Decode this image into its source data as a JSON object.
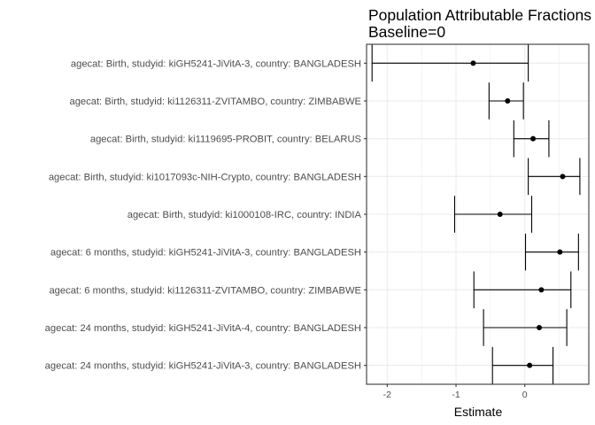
{
  "chart_data": {
    "type": "forest",
    "title_lines": [
      "Population Attributable Fractions",
      "Baseline=0"
    ],
    "xlabel": "Estimate",
    "ylabel": "",
    "xlim": [
      -2.3,
      0.93
    ],
    "xticks": [
      -2,
      -1,
      0
    ],
    "tick_labels": [
      "-2",
      "-1",
      "0"
    ],
    "grid": true,
    "legend": "none",
    "colors": {
      "point": "#000000",
      "grid": "#ebebeb",
      "panel_border": "#333333",
      "label": "#4d4d4d"
    },
    "rows": [
      {
        "label": "agecat: Birth, studyid: kiGH5241-JiVitA-3, country: BANGLADESH",
        "est": -0.75,
        "lower": -2.22,
        "upper": 0.05
      },
      {
        "label": "agecat: Birth, studyid: ki1126311-ZVITAMBO, country: ZIMBABWE",
        "est": -0.25,
        "lower": -0.52,
        "upper": -0.02
      },
      {
        "label": "agecat: Birth, studyid: ki1119695-PROBIT, country: BELARUS",
        "est": 0.12,
        "lower": -0.16,
        "upper": 0.35
      },
      {
        "label": "agecat: Birth, studyid: ki1017093c-NIH-Crypto, country: BANGLADESH",
        "est": 0.55,
        "lower": 0.05,
        "upper": 0.8
      },
      {
        "label": "agecat: Birth, studyid: ki1000108-IRC, country: INDIA",
        "est": -0.36,
        "lower": -1.02,
        "upper": 0.1
      },
      {
        "label": "agecat: 6 months, studyid: kiGH5241-JiVitA-3, country: BANGLADESH",
        "est": 0.51,
        "lower": 0.01,
        "upper": 0.78
      },
      {
        "label": "agecat: 6 months, studyid: ki1126311-ZVITAMBO, country: ZIMBABWE",
        "est": 0.24,
        "lower": -0.74,
        "upper": 0.67
      },
      {
        "label": "agecat: 24 months, studyid: kiGH5241-JiVitA-4, country: BANGLADESH",
        "est": 0.21,
        "lower": -0.6,
        "upper": 0.61
      },
      {
        "label": "agecat: 24 months, studyid: kiGH5241-JiVitA-3, country: BANGLADESH",
        "est": 0.07,
        "lower": -0.47,
        "upper": 0.41
      }
    ]
  }
}
